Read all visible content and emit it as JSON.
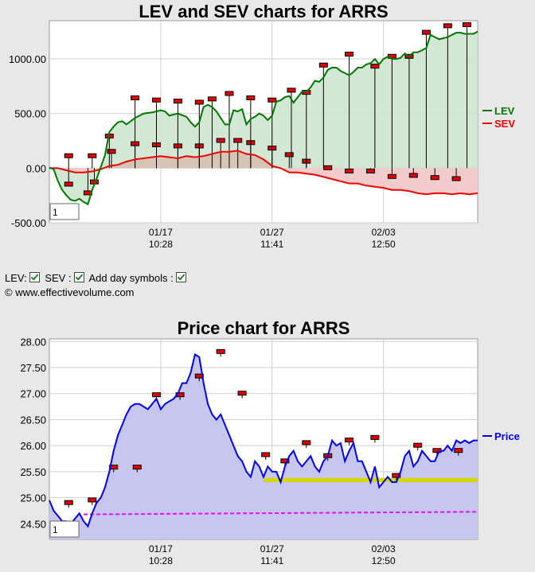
{
  "chart_data": [
    {
      "type": "line",
      "title": "LEV and SEV charts for ARRS",
      "y_ticks": [
        "1000.00",
        "500.00",
        "0.00",
        "-500.00"
      ],
      "ylim": [
        -500,
        1350
      ],
      "x_ticks": [
        {
          "date": "01/17",
          "time": "10:28"
        },
        {
          "date": "01/27",
          "time": "11:41"
        },
        {
          "date": "02/03",
          "time": "12:50"
        }
      ],
      "x_positions": [
        0.26,
        0.52,
        0.78
      ],
      "zoom_box": "1",
      "legend_position": "right",
      "grid": true,
      "series": [
        {
          "name": "LEV",
          "color": "#007700",
          "fill": "#cde5cf",
          "x": [
            0.0,
            0.01,
            0.02,
            0.03,
            0.04,
            0.05,
            0.06,
            0.07,
            0.08,
            0.09,
            0.1,
            0.11,
            0.12,
            0.13,
            0.14,
            0.15,
            0.16,
            0.17,
            0.18,
            0.2,
            0.22,
            0.24,
            0.26,
            0.27,
            0.28,
            0.3,
            0.32,
            0.33,
            0.34,
            0.35,
            0.36,
            0.37,
            0.38,
            0.39,
            0.4,
            0.41,
            0.42,
            0.43,
            0.44,
            0.45,
            0.46,
            0.47,
            0.48,
            0.49,
            0.5,
            0.51,
            0.52,
            0.53,
            0.54,
            0.55,
            0.56,
            0.57,
            0.58,
            0.59,
            0.6,
            0.61,
            0.62,
            0.63,
            0.64,
            0.65,
            0.66,
            0.67,
            0.68,
            0.69,
            0.7,
            0.71,
            0.72,
            0.73,
            0.74,
            0.75,
            0.76,
            0.77,
            0.78,
            0.79,
            0.8,
            0.81,
            0.82,
            0.83,
            0.84,
            0.85,
            0.86,
            0.87,
            0.88,
            0.89,
            0.9,
            0.91,
            0.92,
            0.93,
            0.94,
            0.95,
            0.96,
            0.97,
            0.98,
            0.99,
            1.0
          ],
          "values": [
            5,
            -10,
            -120,
            -200,
            -250,
            -290,
            -300,
            -280,
            -310,
            -330,
            -200,
            -100,
            10,
            120,
            330,
            380,
            420,
            430,
            400,
            460,
            500,
            510,
            530,
            520,
            480,
            500,
            470,
            420,
            380,
            420,
            560,
            580,
            560,
            520,
            460,
            400,
            400,
            530,
            520,
            540,
            400,
            450,
            470,
            500,
            480,
            440,
            480,
            610,
            620,
            650,
            660,
            600,
            650,
            700,
            700,
            740,
            800,
            790,
            830,
            900,
            920,
            920,
            890,
            870,
            850,
            880,
            920,
            920,
            950,
            960,
            1000,
            950,
            1000,
            1020,
            1000,
            1000,
            1010,
            1050,
            1020,
            1060,
            1060,
            1080,
            1100,
            1220,
            1200,
            1180,
            1190,
            1200,
            1220,
            1240,
            1240,
            1230,
            1230,
            1230,
            1250
          ],
          "markers": [
            {
              "x": 0.045,
              "y": -150
            },
            {
              "x": 0.09,
              "y": -230
            },
            {
              "x": 0.105,
              "y": -130
            },
            {
              "x": 0.14,
              "y": 290
            },
            {
              "x": 0.2,
              "y": 640
            },
            {
              "x": 0.25,
              "y": 620
            },
            {
              "x": 0.3,
              "y": 610
            },
            {
              "x": 0.35,
              "y": 600
            },
            {
              "x": 0.38,
              "y": 630
            },
            {
              "x": 0.42,
              "y": 680
            },
            {
              "x": 0.47,
              "y": 640
            },
            {
              "x": 0.52,
              "y": 620
            },
            {
              "x": 0.565,
              "y": 710
            },
            {
              "x": 0.6,
              "y": 690
            },
            {
              "x": 0.64,
              "y": 940
            },
            {
              "x": 0.7,
              "y": 1040
            },
            {
              "x": 0.76,
              "y": 930
            },
            {
              "x": 0.8,
              "y": 1020
            },
            {
              "x": 0.84,
              "y": 1020
            },
            {
              "x": 0.88,
              "y": 1240
            },
            {
              "x": 0.93,
              "y": 1300
            },
            {
              "x": 0.975,
              "y": 1310
            }
          ]
        },
        {
          "name": "SEV",
          "color": "#ee0000",
          "fill_pos": "#d7c4b4",
          "fill_neg": "#f2cccc",
          "x": [
            0.0,
            0.02,
            0.04,
            0.06,
            0.08,
            0.1,
            0.12,
            0.14,
            0.16,
            0.18,
            0.2,
            0.22,
            0.24,
            0.26,
            0.28,
            0.3,
            0.32,
            0.34,
            0.36,
            0.38,
            0.4,
            0.42,
            0.44,
            0.46,
            0.48,
            0.5,
            0.52,
            0.54,
            0.56,
            0.58,
            0.6,
            0.62,
            0.64,
            0.66,
            0.68,
            0.7,
            0.72,
            0.74,
            0.76,
            0.78,
            0.8,
            0.82,
            0.84,
            0.86,
            0.88,
            0.9,
            0.92,
            0.94,
            0.96,
            0.98,
            1.0
          ],
          "values": [
            0,
            0,
            -20,
            -40,
            -40,
            -30,
            -10,
            20,
            30,
            60,
            80,
            90,
            100,
            110,
            100,
            90,
            110,
            100,
            110,
            130,
            150,
            150,
            160,
            130,
            120,
            80,
            20,
            0,
            -40,
            -40,
            -50,
            -60,
            -80,
            -100,
            -120,
            -140,
            -140,
            -160,
            -170,
            -180,
            -200,
            -200,
            -210,
            -230,
            -240,
            -230,
            -230,
            -240,
            -230,
            -240,
            -230
          ],
          "markers": [
            {
              "x": 0.045,
              "y": 110
            },
            {
              "x": 0.1,
              "y": 110
            },
            {
              "x": 0.145,
              "y": 150
            },
            {
              "x": 0.2,
              "y": 220
            },
            {
              "x": 0.25,
              "y": 210
            },
            {
              "x": 0.3,
              "y": 200
            },
            {
              "x": 0.35,
              "y": 200
            },
            {
              "x": 0.4,
              "y": 250
            },
            {
              "x": 0.44,
              "y": 250
            },
            {
              "x": 0.47,
              "y": 230
            },
            {
              "x": 0.52,
              "y": 180
            },
            {
              "x": 0.56,
              "y": 120
            },
            {
              "x": 0.6,
              "y": 60
            },
            {
              "x": 0.65,
              "y": 0
            },
            {
              "x": 0.7,
              "y": -30
            },
            {
              "x": 0.75,
              "y": -30
            },
            {
              "x": 0.8,
              "y": -80
            },
            {
              "x": 0.85,
              "y": -70
            },
            {
              "x": 0.9,
              "y": -90
            },
            {
              "x": 0.95,
              "y": -100
            }
          ]
        }
      ]
    },
    {
      "type": "line",
      "title": "Price chart for ARRS",
      "y_ticks": [
        "28.00",
        "27.50",
        "27.00",
        "26.50",
        "26.00",
        "25.50",
        "25.00",
        "24.50"
      ],
      "ylim": [
        24.2,
        28.05
      ],
      "x_ticks": [
        {
          "date": "01/17",
          "time": "10:28"
        },
        {
          "date": "01/27",
          "time": "11:41"
        },
        {
          "date": "02/03",
          "time": "12:50"
        }
      ],
      "x_positions": [
        0.26,
        0.52,
        0.78
      ],
      "zoom_box": "1",
      "legend_position": "right",
      "grid": true,
      "support_band": {
        "x_start": 0.5,
        "x_end": 1.0,
        "y_low": 25.3,
        "y_high": 25.38,
        "color": "#d7d700"
      },
      "dashed_line": {
        "x_start": 0.08,
        "y_start": 24.68,
        "y_end": 24.73,
        "color": "#ff00ff"
      },
      "series": [
        {
          "name": "Price",
          "color": "#0000ee",
          "fill": "#c6c6ee",
          "x": [
            0.0,
            0.01,
            0.02,
            0.03,
            0.04,
            0.05,
            0.06,
            0.07,
            0.08,
            0.09,
            0.1,
            0.11,
            0.12,
            0.13,
            0.14,
            0.15,
            0.16,
            0.17,
            0.18,
            0.19,
            0.2,
            0.21,
            0.22,
            0.23,
            0.24,
            0.25,
            0.26,
            0.27,
            0.28,
            0.29,
            0.3,
            0.31,
            0.32,
            0.33,
            0.34,
            0.35,
            0.36,
            0.37,
            0.38,
            0.39,
            0.4,
            0.41,
            0.42,
            0.43,
            0.44,
            0.45,
            0.46,
            0.47,
            0.48,
            0.49,
            0.5,
            0.51,
            0.52,
            0.53,
            0.54,
            0.55,
            0.56,
            0.57,
            0.58,
            0.59,
            0.6,
            0.61,
            0.62,
            0.63,
            0.64,
            0.65,
            0.66,
            0.67,
            0.68,
            0.69,
            0.7,
            0.71,
            0.72,
            0.73,
            0.74,
            0.75,
            0.76,
            0.77,
            0.78,
            0.79,
            0.8,
            0.81,
            0.82,
            0.83,
            0.84,
            0.85,
            0.86,
            0.87,
            0.88,
            0.89,
            0.9,
            0.91,
            0.92,
            0.93,
            0.94,
            0.95,
            0.96,
            0.97,
            0.98,
            0.99,
            1.0
          ],
          "values": [
            24.95,
            24.75,
            24.65,
            24.55,
            24.55,
            24.5,
            24.6,
            24.7,
            24.55,
            24.45,
            24.7,
            24.9,
            25.0,
            25.2,
            25.5,
            25.9,
            26.2,
            26.4,
            26.6,
            26.75,
            26.8,
            26.8,
            26.75,
            26.7,
            26.8,
            26.9,
            26.7,
            26.8,
            26.85,
            26.9,
            27.0,
            27.2,
            27.2,
            27.4,
            27.75,
            27.7,
            27.2,
            26.8,
            26.6,
            26.5,
            26.6,
            26.4,
            26.2,
            26.0,
            25.8,
            25.7,
            25.5,
            25.4,
            25.7,
            25.6,
            25.4,
            25.6,
            25.5,
            25.5,
            25.3,
            25.6,
            25.8,
            25.9,
            25.7,
            25.6,
            25.7,
            25.8,
            25.6,
            25.5,
            25.7,
            25.8,
            26.1,
            26.0,
            26.05,
            25.7,
            25.9,
            26.05,
            25.7,
            25.7,
            25.5,
            25.3,
            25.6,
            25.2,
            25.3,
            25.4,
            25.3,
            25.3,
            25.5,
            25.8,
            25.9,
            25.6,
            25.7,
            25.9,
            25.8,
            25.7,
            25.7,
            25.9,
            25.9,
            26.0,
            25.9,
            26.1,
            26.05,
            26.1,
            26.05,
            26.1,
            26.1
          ],
          "markers": [
            {
              "x": 0.045,
              "y": 24.9
            },
            {
              "x": 0.1,
              "y": 24.95
            },
            {
              "x": 0.15,
              "y": 25.58
            },
            {
              "x": 0.205,
              "y": 25.58
            },
            {
              "x": 0.25,
              "y": 26.97
            },
            {
              "x": 0.305,
              "y": 26.97
            },
            {
              "x": 0.35,
              "y": 27.33
            },
            {
              "x": 0.4,
              "y": 27.8
            },
            {
              "x": 0.45,
              "y": 27.0
            },
            {
              "x": 0.505,
              "y": 25.82
            },
            {
              "x": 0.55,
              "y": 25.7
            },
            {
              "x": 0.6,
              "y": 26.05
            },
            {
              "x": 0.65,
              "y": 25.8
            },
            {
              "x": 0.7,
              "y": 26.1
            },
            {
              "x": 0.76,
              "y": 26.15
            },
            {
              "x": 0.81,
              "y": 25.42
            },
            {
              "x": 0.86,
              "y": 26.0
            },
            {
              "x": 0.905,
              "y": 25.9
            },
            {
              "x": 0.955,
              "y": 25.9
            }
          ]
        }
      ]
    }
  ],
  "controls": {
    "lev_label": "LEV:",
    "sev_label": "SEV :",
    "day_symbols_label": "Add day symbols :"
  },
  "copyright": "© www.effectivevolume.com"
}
